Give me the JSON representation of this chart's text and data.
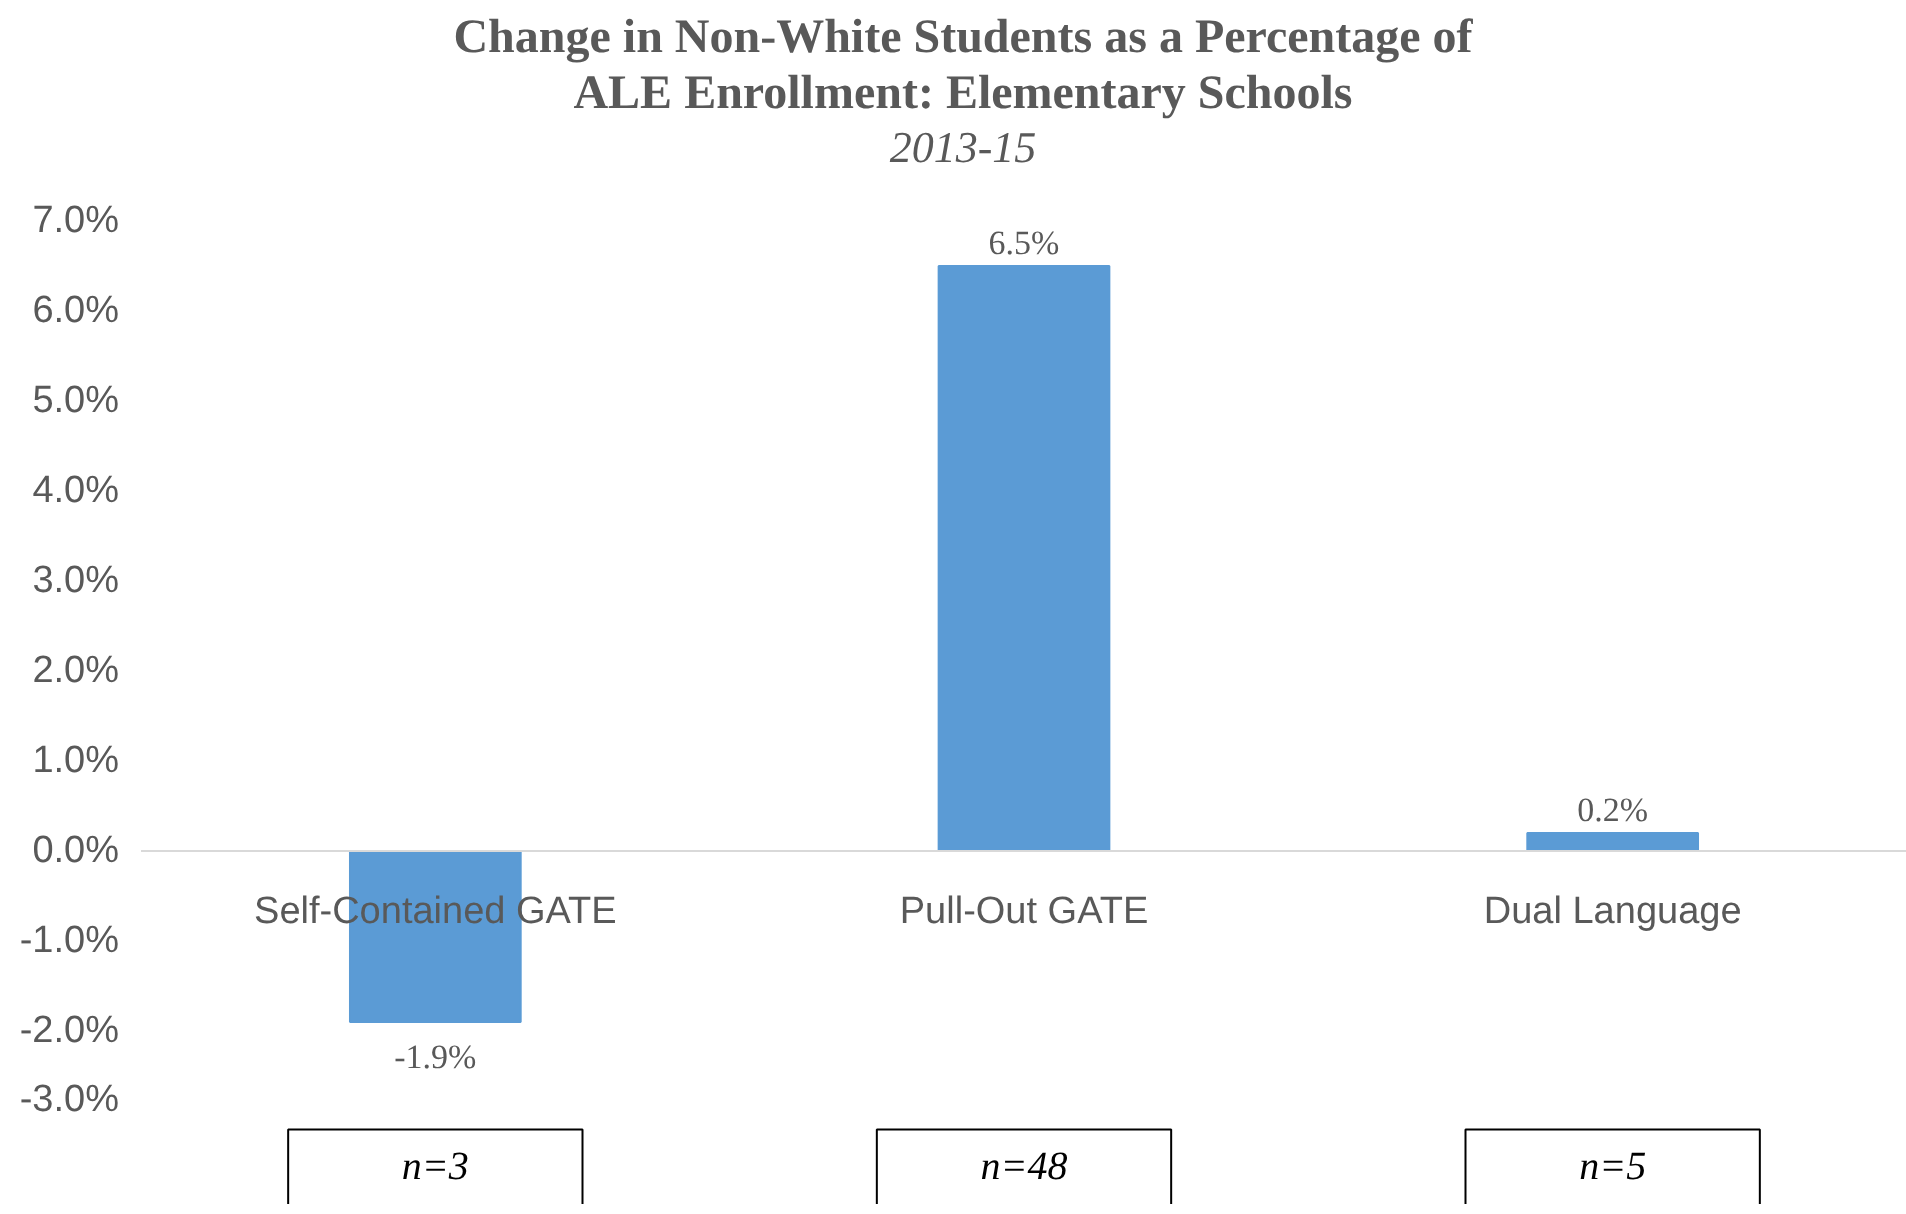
{
  "chart_data": {
    "type": "bar",
    "title": "Change in Non-White Students as a Percentage of ALE Enrollment: Elementary Schools",
    "subtitle": "2013-15",
    "categories": [
      "Self-Contained GATE",
      "Pull-Out GATE",
      "Dual Language"
    ],
    "values": [
      -1.9,
      6.5,
      0.2
    ],
    "color": "#5b9bd5",
    "value_labels": [
      "-1.9%",
      "6.5%",
      "0.2%"
    ],
    "ylim": [
      -3,
      7
    ],
    "yticks": [
      {
        "value": -3,
        "label": "-3.0%"
      },
      {
        "value": -2,
        "label": "-2.0%"
      },
      {
        "value": -1,
        "label": "-1.0%"
      },
      {
        "value": 0,
        "label": "0.0%"
      },
      {
        "value": 1,
        "label": "1.0%"
      },
      {
        "value": 2,
        "label": "2.0%"
      },
      {
        "value": 3,
        "label": "3.0%"
      },
      {
        "value": 4,
        "label": "4.0%"
      },
      {
        "value": 5,
        "label": "5.0%"
      },
      {
        "value": 6,
        "label": "6.0%"
      },
      {
        "value": 7,
        "label": "7.0%"
      }
    ],
    "grid": false,
    "annotations": [
      "n=3",
      "n=48",
      "n=5"
    ]
  }
}
